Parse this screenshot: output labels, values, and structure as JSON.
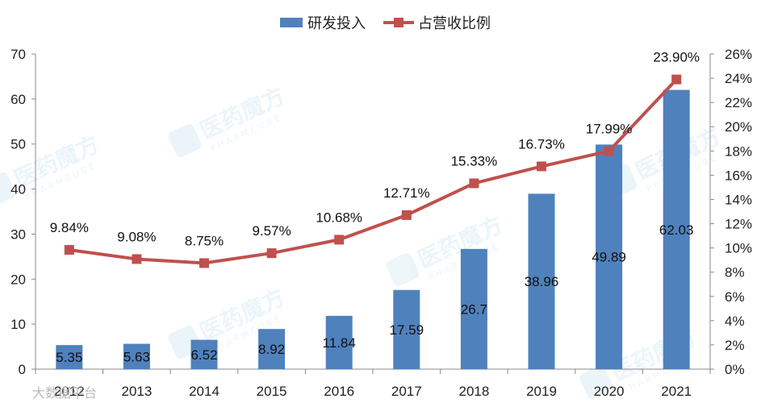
{
  "chart_data": {
    "type": "bar",
    "categories": [
      "2012",
      "2013",
      "2014",
      "2015",
      "2016",
      "2017",
      "2018",
      "2019",
      "2020",
      "2021"
    ],
    "series": [
      {
        "name": "研发投入",
        "type": "bar",
        "axis": "left",
        "values": [
          5.35,
          5.63,
          6.52,
          8.92,
          11.84,
          17.59,
          26.7,
          38.96,
          49.89,
          62.03
        ],
        "labels": [
          "5.35",
          "5.63",
          "6.52",
          "8.92",
          "11.84",
          "17.59",
          "26.7",
          "38.96",
          "49.89",
          "62.03"
        ],
        "color": "#4f81bd"
      },
      {
        "name": "占营收比例",
        "type": "line",
        "axis": "right",
        "values": [
          9.84,
          9.08,
          8.75,
          9.57,
          10.68,
          12.71,
          15.33,
          16.73,
          17.99,
          23.9
        ],
        "labels": [
          "9.84%",
          "9.08%",
          "8.75%",
          "9.57%",
          "10.68%",
          "12.71%",
          "15.33%",
          "16.73%",
          "17.99%",
          "23.90%"
        ],
        "color": "#c0504d"
      }
    ],
    "y_left": {
      "ylim": [
        0,
        70
      ],
      "ticks": [
        "0",
        "10",
        "20",
        "30",
        "40",
        "50",
        "60",
        "70"
      ]
    },
    "y_right": {
      "ylim": [
        0,
        26
      ],
      "ticks": [
        "0%",
        "2%",
        "4%",
        "6%",
        "8%",
        "10%",
        "12%",
        "14%",
        "16%",
        "18%",
        "20%",
        "22%",
        "24%",
        "26%"
      ]
    },
    "legend_position": "top-center",
    "grid": false
  },
  "watermark": {
    "brand": "医药魔方",
    "brand_en": "PHARMCUBE",
    "corner_text": "大数据平台"
  }
}
